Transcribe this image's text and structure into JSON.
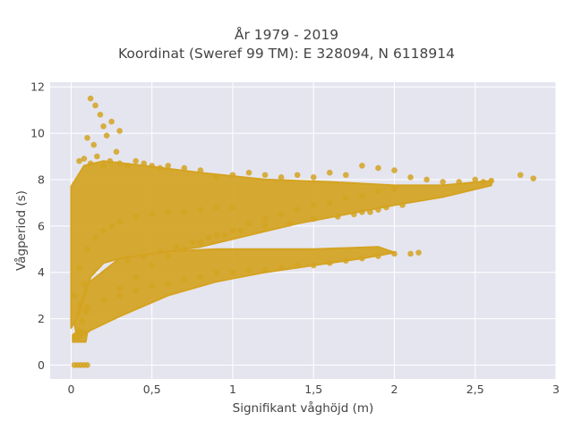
{
  "chart_data": {
    "type": "scatter",
    "title": "År 1979 - 2019",
    "subtitle": "Koordinat (Sweref 99 TM): E 328094, N 6118914",
    "xlabel": "Signifikant våghöjd (m)",
    "ylabel": "Vågperiod (s)",
    "xlim": [
      -0.13,
      3.0
    ],
    "ylim": [
      -0.6,
      12.2
    ],
    "xticks": [
      0,
      0.5,
      1,
      1.5,
      2,
      2.5,
      3
    ],
    "xtick_labels": [
      "0",
      "0,5",
      "1",
      "1,5",
      "2",
      "2,5",
      "3"
    ],
    "yticks": [
      0,
      2,
      4,
      6,
      8,
      10,
      12
    ],
    "ytick_labels": [
      "0",
      "2",
      "4",
      "6",
      "8",
      "10",
      "12"
    ],
    "grid": true,
    "legend": "none",
    "colors": {
      "marker": "#d4a321",
      "plot_bg": "#e5e5f0",
      "grid": "#ffffff"
    },
    "x": [
      0.02,
      0.04,
      0.06,
      0.08,
      0.1,
      0.03,
      0.05,
      0.07,
      0.09,
      0.02,
      0.05,
      0.08,
      0.12,
      0.15,
      0.18,
      0.2,
      0.25,
      0.3,
      0.1,
      0.14,
      0.22,
      0.28,
      0.05,
      0.08,
      0.12,
      0.16,
      0.2,
      0.24,
      0.3,
      0.35,
      0.4,
      0.45,
      0.5,
      0.55,
      0.6,
      0.7,
      0.8,
      0.9,
      1.0,
      1.1,
      1.2,
      1.3,
      1.4,
      1.5,
      1.6,
      1.7,
      1.8,
      1.9,
      2.0,
      2.1,
      2.2,
      2.3,
      2.4,
      2.5,
      2.55,
      2.6,
      2.78,
      2.86,
      0.3,
      0.4,
      0.5,
      0.6,
      0.7,
      0.8,
      0.9,
      1.0,
      1.1,
      1.2,
      1.3,
      1.4,
      1.5,
      1.6,
      1.7,
      1.8,
      1.9,
      2.0,
      2.1,
      2.15,
      0.35,
      0.45,
      0.55,
      0.65,
      0.75,
      0.85,
      0.95,
      1.05,
      1.2,
      1.35,
      1.5,
      1.65,
      1.75,
      1.8,
      1.85,
      1.9,
      1.95,
      2.05,
      0.05,
      0.1,
      0.15,
      0.2,
      0.25,
      0.3,
      0.4,
      0.5,
      0.6,
      0.7,
      0.8,
      0.9,
      1.0,
      0.1,
      0.2,
      0.3,
      0.4,
      0.5,
      0.6,
      0.7,
      0.8,
      0.9,
      1.0,
      1.1,
      1.2,
      1.3,
      1.4,
      1.5,
      1.6,
      1.7,
      1.8,
      1.9,
      2.0
    ],
    "y": [
      0,
      0,
      0,
      0,
      0,
      1.2,
      1.5,
      1.9,
      2.3,
      3.0,
      2.6,
      3.5,
      11.5,
      11.2,
      10.8,
      10.3,
      10.5,
      10.1,
      9.8,
      9.5,
      9.9,
      9.2,
      8.8,
      8.9,
      8.7,
      9.0,
      8.6,
      8.8,
      8.7,
      8.6,
      8.8,
      8.7,
      8.6,
      8.5,
      8.6,
      8.5,
      8.4,
      8.1,
      8.2,
      8.3,
      8.2,
      8.1,
      8.2,
      8.1,
      8.3,
      8.2,
      8.6,
      8.5,
      8.4,
      8.1,
      8.0,
      7.9,
      7.9,
      8.0,
      7.9,
      7.95,
      8.2,
      8.05,
      3.0,
      3.2,
      3.4,
      3.5,
      3.7,
      3.8,
      4.0,
      4.0,
      4.1,
      4.1,
      4.2,
      4.3,
      4.3,
      4.4,
      4.5,
      4.6,
      4.7,
      4.8,
      4.8,
      4.85,
      4.5,
      4.7,
      4.9,
      5.1,
      5.3,
      5.5,
      5.6,
      5.8,
      6.0,
      6.1,
      6.3,
      6.4,
      6.5,
      6.6,
      6.6,
      6.7,
      6.8,
      6.9,
      4.2,
      5.0,
      5.5,
      5.8,
      6.0,
      6.2,
      6.4,
      6.5,
      6.6,
      6.6,
      6.7,
      6.8,
      6.8,
      2.5,
      2.8,
      3.3,
      3.8,
      4.3,
      4.7,
      5.0,
      5.3,
      5.6,
      5.8,
      6.1,
      6.3,
      6.5,
      6.7,
      6.9,
      7.0,
      7.2,
      7.3,
      7.5,
      7.6
    ]
  }
}
